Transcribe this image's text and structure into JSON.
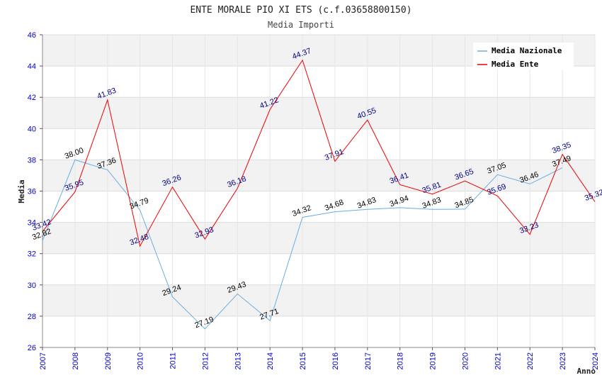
{
  "chart_data": {
    "type": "line",
    "title": "ENTE MORALE PIO XI ETS (c.f.03658800150)",
    "subtitle": "Media Importi",
    "xlabel": "Anno",
    "ylabel": "Media",
    "ylim": [
      26,
      46
    ],
    "yticks": [
      "26",
      "28",
      "30",
      "32",
      "34",
      "36",
      "38",
      "40",
      "42",
      "44",
      "46"
    ],
    "x": [
      "2007",
      "2008",
      "2009",
      "2010",
      "2011",
      "2012",
      "2013",
      "2014",
      "2015",
      "2016",
      "2017",
      "2018",
      "2019",
      "2020",
      "2021",
      "2022",
      "2023",
      "2024"
    ],
    "grid": true,
    "legend_position": "top-right",
    "series": [
      {
        "name": "Media Nazionale",
        "color": "#6aaee0",
        "label_color": "#000000",
        "values": [
          32.82,
          38.0,
          37.36,
          34.79,
          29.24,
          27.19,
          29.43,
          27.71,
          34.32,
          34.68,
          34.83,
          34.94,
          34.83,
          34.85,
          37.05,
          36.46,
          37.49,
          null
        ],
        "labels": [
          "32.82",
          "38.00",
          "37.36",
          "34.79",
          "29.24",
          "27.19",
          "29.43",
          "27.71",
          "34.32",
          "34.68",
          "34.83",
          "34.94",
          "34.83",
          "34.85",
          "37.05",
          "36.46",
          "37.49",
          ""
        ]
      },
      {
        "name": "Media Ente",
        "color": "#ee0000",
        "label_color": "#000080",
        "values": [
          33.42,
          35.95,
          41.83,
          32.48,
          36.26,
          32.93,
          36.18,
          41.22,
          44.37,
          37.91,
          40.55,
          36.41,
          35.81,
          36.65,
          35.69,
          33.23,
          38.35,
          35.32
        ],
        "labels": [
          "33.42",
          "35.95",
          "41.83",
          "32.48",
          "36.26",
          "32.93",
          "36.18",
          "41.22",
          "44.37",
          "37.91",
          "40.55",
          "36.41",
          "35.81",
          "36.65",
          "35.69",
          "33.23",
          "38.35",
          "35.32"
        ]
      }
    ]
  }
}
